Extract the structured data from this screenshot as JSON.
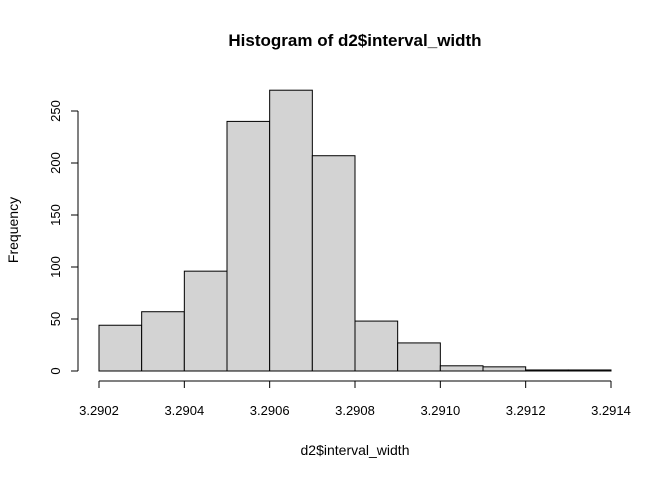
{
  "chart_data": {
    "type": "bar",
    "title": "Histogram of d2$interval_width",
    "xlabel": "d2$interval_width",
    "ylabel": "Frequency",
    "bin_edges": [
      3.2902,
      3.2903,
      3.2904,
      3.2905,
      3.2906,
      3.2907,
      3.2908,
      3.2909,
      3.291,
      3.2911,
      3.2912,
      3.2913,
      3.2914
    ],
    "values": [
      44,
      57,
      96,
      240,
      270,
      207,
      48,
      27,
      5,
      4,
      1,
      1
    ],
    "xlim": [
      3.2902,
      3.2914
    ],
    "ylim": [
      0,
      270
    ],
    "x_ticks": [
      "3.2902",
      "3.2904",
      "3.2906",
      "3.2908",
      "3.2910",
      "3.2912",
      "3.2914"
    ],
    "y_ticks": [
      "0",
      "50",
      "100",
      "150",
      "200",
      "250"
    ],
    "grid": false,
    "bar_fill": "#d3d3d3",
    "bar_stroke": "#000000"
  }
}
